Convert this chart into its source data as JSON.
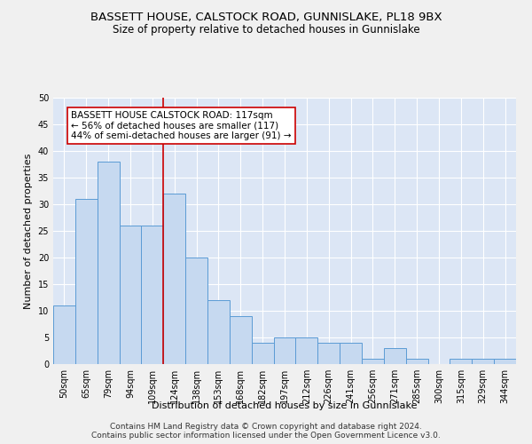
{
  "title1": "BASSETT HOUSE, CALSTOCK ROAD, GUNNISLAKE, PL18 9BX",
  "title2": "Size of property relative to detached houses in Gunnislake",
  "xlabel": "Distribution of detached houses by size in Gunnislake",
  "ylabel": "Number of detached properties",
  "categories": [
    "50sqm",
    "65sqm",
    "79sqm",
    "94sqm",
    "109sqm",
    "124sqm",
    "138sqm",
    "153sqm",
    "168sqm",
    "182sqm",
    "197sqm",
    "212sqm",
    "226sqm",
    "241sqm",
    "256sqm",
    "271sqm",
    "285sqm",
    "300sqm",
    "315sqm",
    "329sqm",
    "344sqm"
  ],
  "values": [
    11,
    31,
    38,
    26,
    26,
    32,
    20,
    12,
    9,
    4,
    5,
    5,
    4,
    4,
    1,
    3,
    1,
    0,
    1,
    1,
    1
  ],
  "bar_color": "#c6d9f0",
  "bar_edge_color": "#5b9bd5",
  "vline_color": "#cc0000",
  "annotation_text": "BASSETT HOUSE CALSTOCK ROAD: 117sqm\n← 56% of detached houses are smaller (117)\n44% of semi-detached houses are larger (91) →",
  "annotation_box_color": "#ffffff",
  "annotation_box_edge": "#cc0000",
  "ylim": [
    0,
    50
  ],
  "yticks": [
    0,
    5,
    10,
    15,
    20,
    25,
    30,
    35,
    40,
    45,
    50
  ],
  "footer1": "Contains HM Land Registry data © Crown copyright and database right 2024.",
  "footer2": "Contains public sector information licensed under the Open Government Licence v3.0.",
  "bg_color": "#dce6f5",
  "grid_color": "#ffffff",
  "fig_bg_color": "#f0f0f0",
  "title1_fontsize": 9.5,
  "title2_fontsize": 8.5,
  "xlabel_fontsize": 8,
  "ylabel_fontsize": 8,
  "tick_fontsize": 7,
  "footer_fontsize": 6.5,
  "annotation_fontsize": 7.5
}
